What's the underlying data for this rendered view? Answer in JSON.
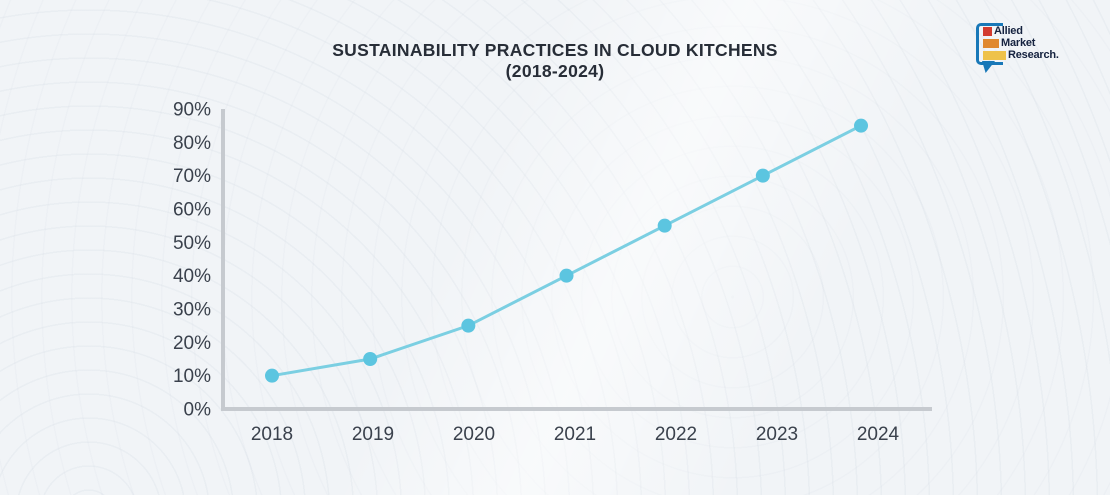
{
  "page": {
    "background": "#f1f4f7"
  },
  "header": {
    "title_line1": "SUSTAINABILITY PRACTICES IN CLOUD KITCHENS",
    "title_line2": "(2018-2024)"
  },
  "logo": {
    "name": "Allied Market Research",
    "lines": [
      "Allied",
      "Market",
      "Research."
    ],
    "colors": {
      "bubble": "#1878b8",
      "bar_red": "#d23b30",
      "bar_orange": "#e0882e",
      "bar_yellow": "#eec24a",
      "text": "#15223f"
    }
  },
  "chart_data": {
    "type": "line",
    "title": "SUSTAINABILITY PRACTICES IN CLOUD KITCHENS (2018-2024)",
    "categories": [
      "2018",
      "2019",
      "2020",
      "2021",
      "2022",
      "2023",
      "2024"
    ],
    "values": [
      10,
      15,
      25,
      40,
      55,
      70,
      85
    ],
    "xlabel": "",
    "ylabel": "",
    "ylim": [
      0,
      90
    ],
    "ytick_step": 10,
    "ytick_suffix": "%",
    "grid": false,
    "legend": "none",
    "line_color": "#7bcfe2",
    "marker_color": "#5cc5e0",
    "axis_color": "#c6cacf",
    "tick_label_color": "#3a414c"
  }
}
